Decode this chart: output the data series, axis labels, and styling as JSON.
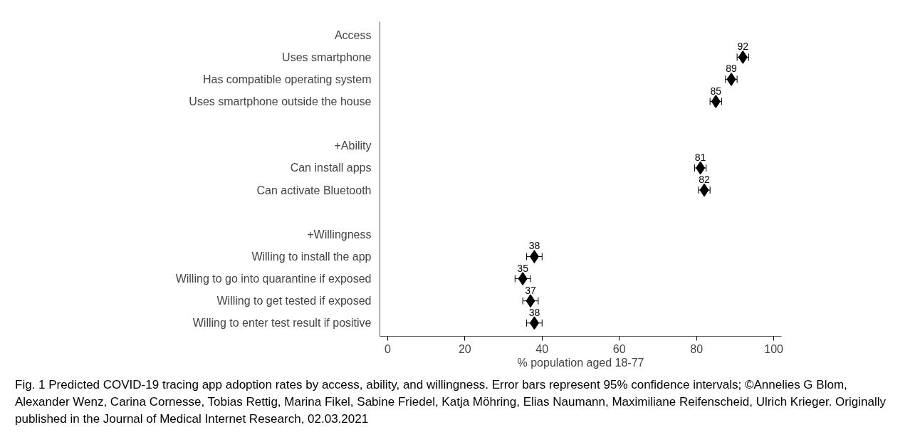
{
  "chart_data": {
    "type": "scatter",
    "orientation": "horizontal",
    "marker": "diamond",
    "data_labels": true,
    "grid": false,
    "categories": [
      "Access",
      "Uses smartphone",
      "Has compatible operating system",
      "Uses smartphone outside the house",
      null,
      "+Ability",
      "Can install apps",
      "Can activate Bluetooth",
      null,
      "+Willingness",
      "Willing to install the app",
      "Willing to go into quarantine if exposed",
      "Willing to get tested if exposed",
      "Willing to enter test result if positive"
    ],
    "series": [
      {
        "color": "#000000",
        "values": [
          null,
          92,
          89,
          85,
          null,
          null,
          81,
          82,
          null,
          null,
          38,
          35,
          37,
          38
        ],
        "errors": [
          null,
          1.5,
          1.5,
          1.5,
          null,
          null,
          1.5,
          1.5,
          null,
          null,
          2,
          2,
          2,
          2
        ]
      }
    ],
    "xlim": [
      -2,
      102
    ],
    "xticks": [
      0,
      20,
      40,
      60,
      80,
      100
    ],
    "xlabel": "% population aged 18-77",
    "annotations": [
      "Fig. 1  Predicted COVID-19 tracing app adoption rates by access, ability, and willingness. Error bars represent 95% confidence intervals; ©Annelies G Blom, Alexander Wenz, Carina Cornesse, Tobias Rettig, Marina Fikel, Sabine Friedel, Katja Möhring, Elias Naumann, Maximiliane Reifenscheid, Ulrich Krieger. Originally published in the Journal of Medical Internet Research, 02.03.2021"
    ]
  }
}
